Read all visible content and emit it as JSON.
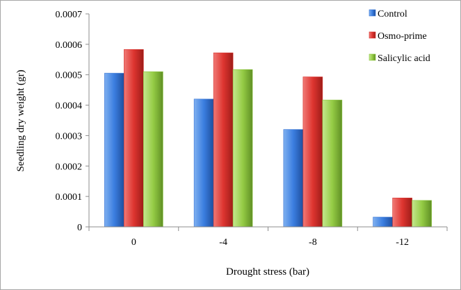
{
  "chart_data": {
    "type": "bar",
    "title": "",
    "xlabel": "Drought stress (bar)",
    "ylabel": "Seedling dry weight (gr)",
    "categories": [
      "0",
      "-4",
      "-8",
      "-12"
    ],
    "ylim": [
      0,
      0.0007
    ],
    "yticks": [
      "0",
      "0.0001",
      "0.0002",
      "0.0003",
      "0.0004",
      "0.0005",
      "0.0006",
      "0.0007"
    ],
    "grid": false,
    "legend_position": "top-right",
    "series": [
      {
        "name": "Control",
        "values": [
          0.000505,
          0.00042,
          0.00032,
          3.2e-05
        ],
        "color": "#2f6fd3"
      },
      {
        "name": "Osmo-prime",
        "values": [
          0.000583,
          0.000572,
          0.000493,
          9.5e-05
        ],
        "color": "#d8322d"
      },
      {
        "name": "Salicylic acid",
        "values": [
          0.00051,
          0.000517,
          0.000417,
          8.7e-05
        ],
        "color": "#8cc63f"
      }
    ]
  }
}
